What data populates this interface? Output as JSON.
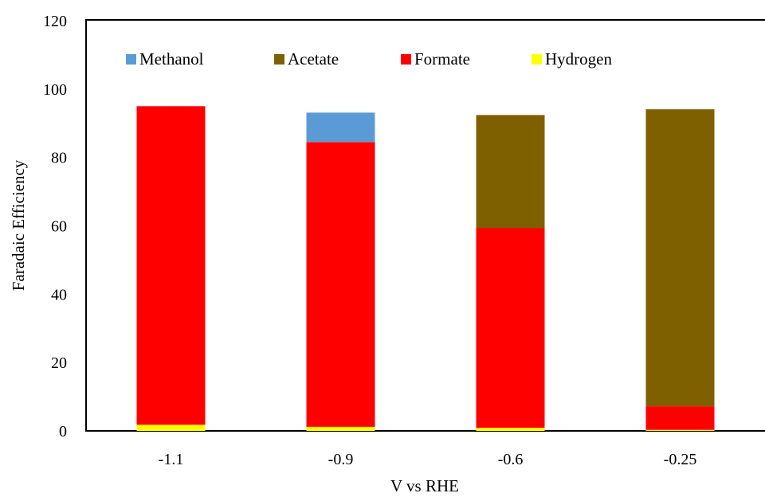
{
  "chart_data": {
    "type": "bar",
    "stacked": true,
    "categories": [
      "-1.1",
      "-0.9",
      "-0.6",
      "-0.25"
    ],
    "series": [
      {
        "name": "Hydrogen",
        "color": "#ffff00",
        "values": [
          1.8,
          1.2,
          0.9,
          0.3
        ]
      },
      {
        "name": "Formate",
        "color": "#ff0000",
        "values": [
          93.2,
          83.3,
          58.4,
          6.9
        ]
      },
      {
        "name": "Acetate",
        "color": "#7f6000",
        "values": [
          0,
          0,
          33.1,
          86.9
        ]
      },
      {
        "name": "Methanol",
        "color": "#5b9bd5",
        "values": [
          0,
          8.6,
          0,
          0
        ]
      }
    ],
    "legend_order": [
      "Methanol",
      "Acetate",
      "Formate",
      "Hydrogen"
    ],
    "legend_position": "top",
    "xlabel": "V vs RHE",
    "ylabel": "Faradaic Efficiency",
    "ylim": [
      0,
      120
    ],
    "yticks": [
      "0",
      "20",
      "40",
      "60",
      "80",
      "100",
      "120"
    ],
    "grid": false
  }
}
